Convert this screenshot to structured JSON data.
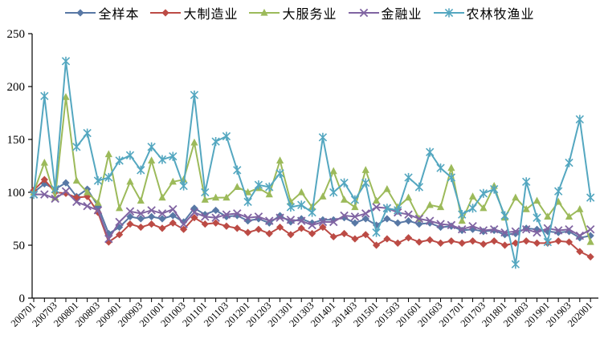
{
  "chart_data": {
    "type": "line",
    "title": "",
    "xlabel": "",
    "ylabel": "",
    "y_axis": {
      "min": 0,
      "max": 250,
      "step": 50,
      "tick_labels": [
        "0",
        "50",
        "100",
        "150",
        "200",
        "250"
      ]
    },
    "x_tick_labels": [
      "200701",
      "200703",
      "200801",
      "200803",
      "200901",
      "200903",
      "201001",
      "201003",
      "201101",
      "201103",
      "201201",
      "201203",
      "201301",
      "201303",
      "201401",
      "201403",
      "201501",
      "201503",
      "201601",
      "201603",
      "201701",
      "201703",
      "201801",
      "201803",
      "201901",
      "201903",
      "202001"
    ],
    "x_label_every_n_points": 2,
    "n_points": 53,
    "grid": false,
    "legend_position": "top-center",
    "series": [
      {
        "id": "full-sample",
        "name": "全样本",
        "color": "#5878a5",
        "marker": "diamond",
        "values": [
          100,
          108,
          103,
          109,
          96,
          103,
          87,
          61,
          67,
          77,
          75,
          77,
          75,
          78,
          72,
          85,
          79,
          83,
          77,
          78,
          73,
          75,
          71,
          78,
          72,
          75,
          71,
          74,
          74,
          76,
          71,
          75,
          69,
          75,
          71,
          73,
          70,
          71,
          67,
          68,
          64,
          65,
          63,
          64,
          60,
          61,
          66,
          65,
          63,
          62,
          63,
          57,
          59
        ]
      },
      {
        "id": "manufacturing",
        "name": "大制造业",
        "color": "#bc4b45",
        "marker": "diamond",
        "values": [
          102,
          112,
          100,
          99,
          95,
          96,
          81,
          53,
          60,
          70,
          67,
          70,
          66,
          71,
          65,
          76,
          70,
          71,
          68,
          66,
          62,
          65,
          61,
          67,
          60,
          66,
          61,
          67,
          58,
          61,
          56,
          60,
          50,
          56,
          52,
          57,
          53,
          55,
          52,
          54,
          52,
          54,
          51,
          54,
          50,
          52,
          54,
          52,
          52,
          54,
          53,
          44,
          39
        ]
      },
      {
        "id": "services",
        "name": "大服务业",
        "color": "#9cba5a",
        "marker": "triangle",
        "values": [
          100,
          128,
          95,
          190,
          111,
          100,
          90,
          136,
          85,
          110,
          92,
          130,
          95,
          110,
          112,
          147,
          93,
          95,
          95,
          105,
          100,
          104,
          98,
          130,
          91,
          100,
          86,
          96,
          120,
          93,
          86,
          121,
          92,
          103,
          86,
          95,
          75,
          88,
          86,
          123,
          73,
          96,
          85,
          106,
          76,
          95,
          84,
          92,
          77,
          91,
          77,
          84,
          53
        ]
      },
      {
        "id": "finance",
        "name": "金融业",
        "color": "#8064a2",
        "marker": "x",
        "values": [
          98,
          98,
          94,
          101,
          91,
          87,
          83,
          56,
          72,
          82,
          80,
          83,
          80,
          84,
          70,
          81,
          77,
          76,
          79,
          80,
          76,
          77,
          73,
          76,
          74,
          73,
          69,
          72,
          72,
          78,
          77,
          80,
          86,
          85,
          81,
          79,
          75,
          73,
          70,
          69,
          65,
          68,
          64,
          65,
          62,
          63,
          65,
          62,
          66,
          64,
          65,
          59,
          65
        ]
      },
      {
        "id": "agriculture",
        "name": "农林牧渔业",
        "color": "#54a7c0",
        "marker": "asterisk",
        "values": [
          98,
          191,
          103,
          224,
          143,
          156,
          111,
          114,
          130,
          135,
          121,
          143,
          131,
          134,
          106,
          192,
          100,
          148,
          153,
          121,
          91,
          107,
          105,
          118,
          86,
          88,
          81,
          152,
          100,
          109,
          93,
          109,
          62,
          85,
          83,
          114,
          105,
          138,
          123,
          114,
          79,
          85,
          99,
          103,
          78,
          32,
          110,
          76,
          53,
          101,
          128,
          169,
          95
        ]
      }
    ]
  },
  "axis_color": "#000000",
  "background": "#ffffff"
}
